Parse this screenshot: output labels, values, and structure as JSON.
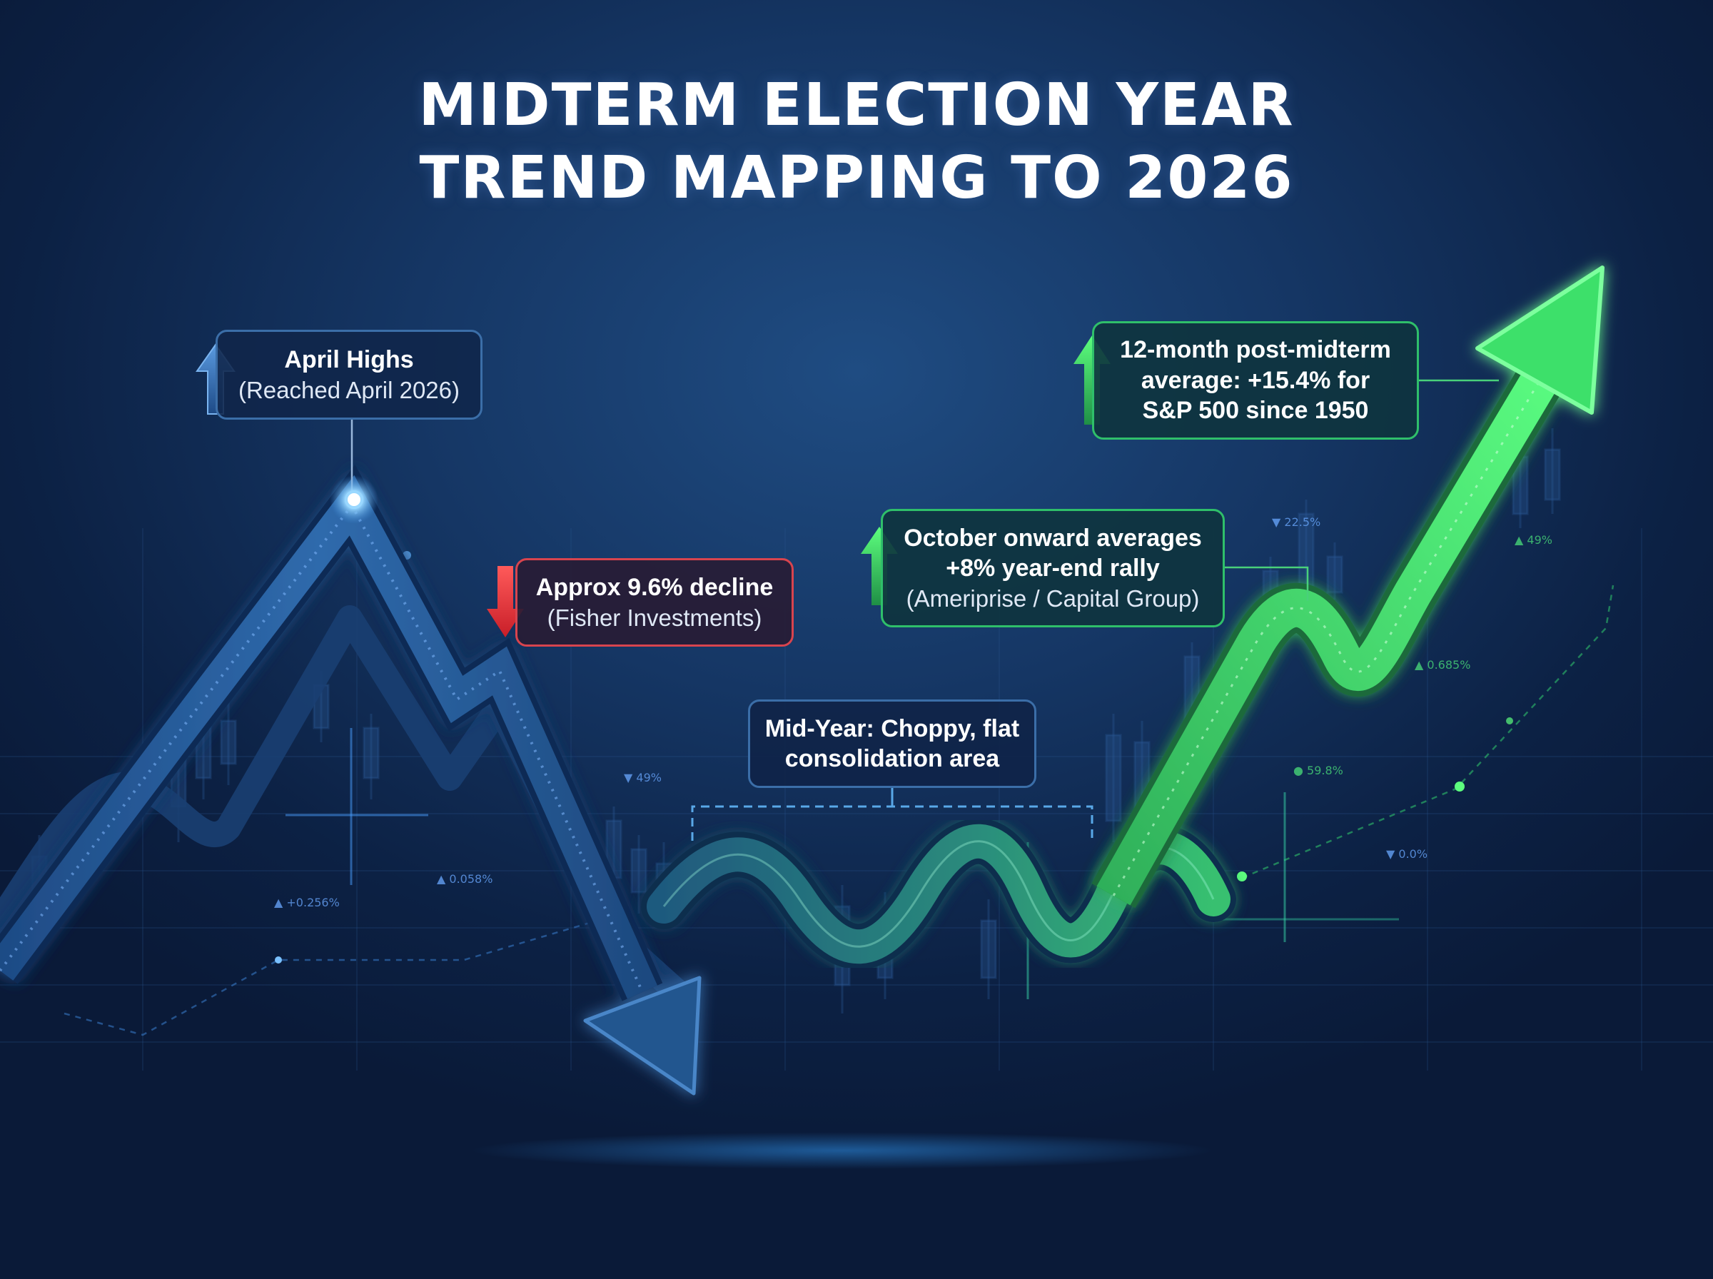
{
  "title": {
    "line1": "MIDTERM ELECTION YEAR",
    "line2": "TREND MAPPING TO 2026"
  },
  "callouts": {
    "april_highs": {
      "line1": "April Highs",
      "line2": "(Reached April 2026)"
    },
    "decline": {
      "line1": "Approx 9.6% decline",
      "line2": "(Fisher Investments)"
    },
    "mid_year": {
      "line1": "Mid-Year: Choppy, flat",
      "line2": "consolidation area"
    },
    "october": {
      "line1": "October onward averages",
      "line2": "+8% year-end rally",
      "line3": "(Ameriprise / Capital Group)"
    },
    "post_midterm": {
      "line1": "12-month post-midterm",
      "line2": "average: +15.4% for",
      "line3": "S&P 500 since 1950"
    }
  },
  "background_labels": {
    "l1": "▲ +0.256%",
    "l2": "▲ 0.058%",
    "l3": "▼ 49%",
    "l4": "▼ 22.5%",
    "l5": "▲ 49%",
    "l6": "▲ 0.685%",
    "l7": "● 59.8%",
    "l8": "▼ 0.0%"
  },
  "colors": {
    "blue_trend": "#3f7cc4",
    "green_trend": "#3fe06a",
    "decline_red": "#e03a42",
    "highlight_glow": "#8fd0ff"
  },
  "icons": {
    "april": "arrow-up-icon",
    "decline": "arrow-down-icon",
    "october": "arrow-up-icon",
    "post_midterm": "arrow-up-icon"
  }
}
